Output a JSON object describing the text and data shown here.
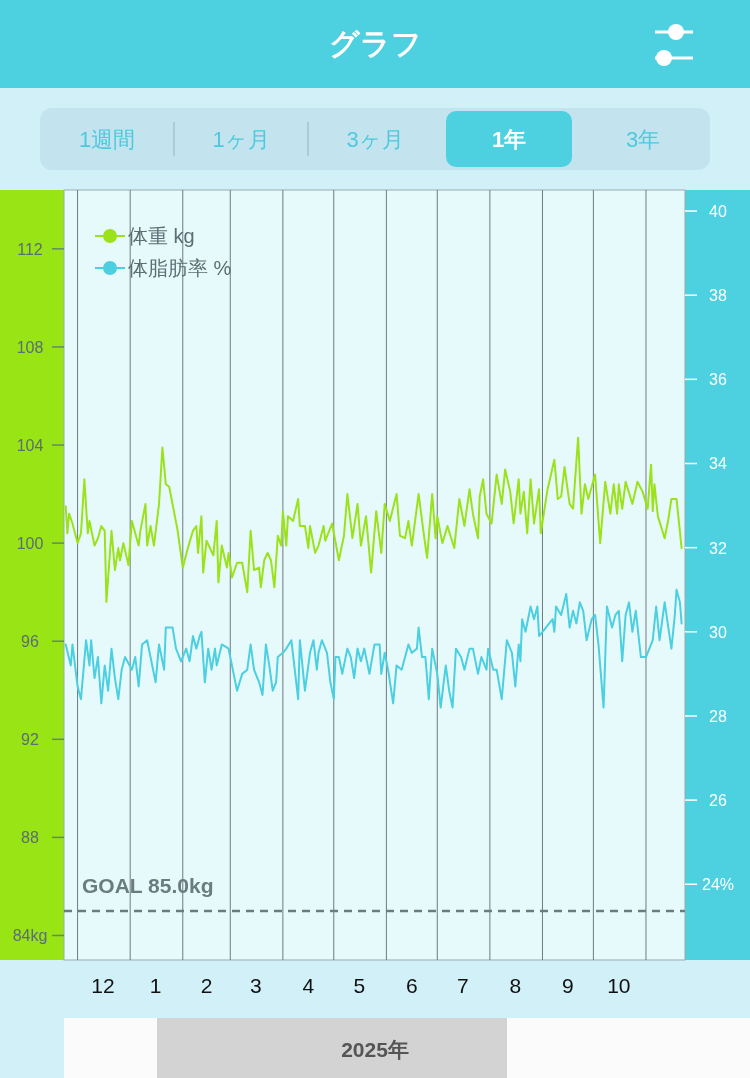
{
  "chart_data": {
    "type": "line",
    "title": "グラフ",
    "xlabel": "2025年",
    "annotations": [
      "1週間",
      "1ヶ月",
      "3ヶ月",
      "1年",
      "3年"
    ],
    "xlim": [
      "2024-11-23",
      "2025-11-24"
    ],
    "xticks": [
      {
        "value": "2024-12-01",
        "label": null
      },
      {
        "value": "2024-12-16",
        "label": "12"
      },
      {
        "value": "2025-01-01",
        "label": null
      },
      {
        "value": "2025-01-16",
        "label": "1"
      },
      {
        "value": "2025-02-01",
        "label": null
      },
      {
        "value": "2025-02-15",
        "label": "2"
      },
      {
        "value": "2025-03-01",
        "label": null
      },
      {
        "value": "2025-03-16",
        "label": "3"
      },
      {
        "value": "2025-04-01",
        "label": null
      },
      {
        "value": "2025-04-16",
        "label": "4"
      },
      {
        "value": "2025-05-01",
        "label": null
      },
      {
        "value": "2025-05-16",
        "label": "5"
      },
      {
        "value": "2025-06-01",
        "label": null
      },
      {
        "value": "2025-06-16",
        "label": "6"
      },
      {
        "value": "2025-07-01",
        "label": null
      },
      {
        "value": "2025-07-16",
        "label": "7"
      },
      {
        "value": "2025-08-01",
        "label": null
      },
      {
        "value": "2025-08-16",
        "label": "8"
      },
      {
        "value": "2025-09-01",
        "label": null
      },
      {
        "value": "2025-09-16",
        "label": "9"
      },
      {
        "value": "2025-10-01",
        "label": null
      },
      {
        "value": "2025-10-16",
        "label": "10"
      },
      {
        "value": "2025-11-01",
        "label": null
      }
    ],
    "ylim": [
      83,
      114.4
    ],
    "yticks": [
      {
        "value": 84,
        "label": "84kg"
      },
      88,
      92,
      96,
      100,
      104,
      108,
      112
    ],
    "y2lim": [
      22.2,
      40.5
    ],
    "y2ticks": [
      {
        "value": 24,
        "label": "24%"
      },
      26,
      28,
      30,
      32,
      34,
      36,
      38,
      40
    ],
    "grid": "x",
    "legend": "top left",
    "ref_lines": [
      {
        "axis": "y",
        "value": 85,
        "label": "GOAL 85.0kg",
        "color": "#6b7b80",
        "line_style": "dashed"
      }
    ],
    "series": [
      {
        "name": "体重 kg",
        "color": "#9be21a",
        "x": [
          "2024-11-24",
          "2024-11-25",
          "2024-11-26",
          "2024-11-28",
          "2024-12-01",
          "2024-12-03",
          "2024-12-05",
          "2024-12-07",
          "2024-12-08",
          "2024-12-11",
          "2024-12-13",
          "2024-12-15",
          "2024-12-17",
          "2024-12-18",
          "2024-12-21",
          "2024-12-23",
          "2024-12-25",
          "2024-12-26",
          "2024-12-28",
          "2024-12-31",
          "2025-01-02",
          "2025-01-06",
          "2025-01-07",
          "2025-01-10",
          "2025-01-11",
          "2025-01-13",
          "2025-01-15",
          "2025-01-18",
          "2025-01-20",
          "2025-01-22",
          "2025-01-24",
          "2025-01-29",
          "2025-02-01",
          "2025-02-04",
          "2025-02-07",
          "2025-02-09",
          "2025-02-10",
          "2025-02-12",
          "2025-02-13",
          "2025-02-15",
          "2025-02-17",
          "2025-02-19",
          "2025-02-21",
          "2025-02-22",
          "2025-02-24",
          "2025-02-27",
          "2025-02-28",
          "2025-03-02",
          "2025-03-05",
          "2025-03-08",
          "2025-03-11",
          "2025-03-13",
          "2025-03-15",
          "2025-03-18",
          "2025-03-19",
          "2025-03-21",
          "2025-03-23",
          "2025-03-25",
          "2025-03-27",
          "2025-03-29",
          "2025-03-31",
          "2025-04-01",
          "2025-04-03",
          "2025-04-04",
          "2025-04-07",
          "2025-04-10",
          "2025-04-11",
          "2025-04-14",
          "2025-04-16",
          "2025-04-17",
          "2025-04-20",
          "2025-04-22",
          "2025-04-25",
          "2025-04-26",
          "2025-04-30",
          "2025-05-04",
          "2025-05-07",
          "2025-05-09",
          "2025-05-12",
          "2025-05-15",
          "2025-05-17",
          "2025-05-20",
          "2025-05-23",
          "2025-05-26",
          "2025-05-29",
          "2025-05-31",
          "2025-06-03",
          "2025-06-07",
          "2025-06-09",
          "2025-06-12",
          "2025-06-14",
          "2025-06-16",
          "2025-06-20",
          "2025-06-23",
          "2025-06-25",
          "2025-06-28",
          "2025-06-30",
          "2025-07-01",
          "2025-07-04",
          "2025-07-07",
          "2025-07-11",
          "2025-07-14",
          "2025-07-17",
          "2025-07-20",
          "2025-07-22",
          "2025-07-25",
          "2025-07-26",
          "2025-07-28",
          "2025-07-30",
          "2025-08-02",
          "2025-08-05",
          "2025-08-08",
          "2025-08-10",
          "2025-08-13",
          "2025-08-15",
          "2025-08-18",
          "2025-08-19",
          "2025-08-21",
          "2025-08-23",
          "2025-08-25",
          "2025-08-27",
          "2025-08-30",
          "2025-08-31",
          "2025-09-04",
          "2025-09-08",
          "2025-09-10",
          "2025-09-12",
          "2025-09-14",
          "2025-09-17",
          "2025-09-19",
          "2025-09-22",
          "2025-09-24",
          "2025-09-26",
          "2025-09-28",
          "2025-10-02",
          "2025-10-05",
          "2025-10-08",
          "2025-10-11",
          "2025-10-13",
          "2025-10-15",
          "2025-10-16",
          "2025-10-18",
          "2025-10-20",
          "2025-10-24",
          "2025-10-27",
          "2025-10-30",
          "2025-11-02",
          "2025-11-04",
          "2025-11-05",
          "2025-11-06",
          "2025-11-08",
          "2025-11-12",
          "2025-11-14",
          "2025-11-16",
          "2025-11-19",
          "2025-11-22"
        ],
        "values": [
          101.5,
          100.4,
          101.2,
          100.8,
          100,
          100.4,
          102.6,
          100.4,
          100.9,
          99.9,
          100.2,
          100.7,
          100.5,
          97.6,
          100.5,
          98.9,
          99.8,
          99.3,
          100,
          99.1,
          100.9,
          99.9,
          100.5,
          101.6,
          99.9,
          100.7,
          99.9,
          101.6,
          103.9,
          102.4,
          102.3,
          100.5,
          99,
          99.8,
          100.5,
          100.7,
          99.6,
          101.1,
          98.8,
          100.1,
          99.8,
          99.5,
          100.9,
          98.4,
          99.9,
          99,
          99.6,
          98.6,
          99.2,
          99.2,
          98,
          100.5,
          98.9,
          99,
          98.2,
          99.3,
          99.6,
          99.3,
          98.2,
          100.3,
          99.9,
          101.3,
          99.9,
          101.1,
          100.9,
          101.8,
          100.7,
          100.7,
          99.8,
          100.7,
          99.6,
          99.9,
          100.7,
          100.1,
          100.8,
          99.3,
          100.3,
          102,
          100.2,
          101.6,
          99.9,
          101.1,
          98.8,
          101.3,
          99.6,
          101.6,
          100.9,
          102,
          100.3,
          100.2,
          100.9,
          99.9,
          102,
          100.4,
          99.4,
          102,
          100.2,
          101.1,
          100,
          100.7,
          99.8,
          101.8,
          100.7,
          102.2,
          101.2,
          100.2,
          101.9,
          102.6,
          101.2,
          100.8,
          102.8,
          101.6,
          103,
          102.1,
          100.8,
          102.6,
          101.2,
          102.1,
          100.4,
          102.6,
          100.8,
          102.2,
          100.4,
          102.2,
          103.4,
          101.8,
          101.9,
          103.1,
          101.6,
          101.4,
          104.3,
          101.2,
          102.4,
          101.8,
          102.8,
          100,
          102.5,
          101.2,
          102.4,
          101.2,
          102.4,
          101.4,
          102.5,
          101.6,
          102.5,
          102.1,
          101.4,
          103.2,
          101.3,
          102.4,
          101.1,
          100.2,
          100.9,
          101.8,
          101.8,
          99.8
        ]
      },
      {
        "name": "体脂肪率 %",
        "color": "#4ccfe0",
        "axis": "y2",
        "x": [
          "2024-11-24",
          "2024-11-27",
          "2024-11-28",
          "2024-12-01",
          "2024-12-03",
          "2024-12-06",
          "2024-12-08",
          "2024-12-09",
          "2024-12-11",
          "2024-12-13",
          "2024-12-15",
          "2024-12-17",
          "2024-12-19",
          "2024-12-21",
          "2024-12-23",
          "2024-12-25",
          "2024-12-27",
          "2024-12-29",
          "2025-01-02",
          "2025-01-04",
          "2025-01-06",
          "2025-01-08",
          "2025-01-11",
          "2025-01-14",
          "2025-01-16",
          "2025-01-18",
          "2025-01-21",
          "2025-01-22",
          "2025-01-24",
          "2025-01-26",
          "2025-01-28",
          "2025-01-31",
          "2025-02-03",
          "2025-02-05",
          "2025-02-07",
          "2025-02-09",
          "2025-02-11",
          "2025-02-12",
          "2025-02-14",
          "2025-02-16",
          "2025-02-18",
          "2025-02-20",
          "2025-02-21",
          "2025-02-24",
          "2025-02-28",
          "2025-03-03",
          "2025-03-05",
          "2025-03-08",
          "2025-03-11",
          "2025-03-13",
          "2025-03-15",
          "2025-03-18",
          "2025-03-20",
          "2025-03-22",
          "2025-03-24",
          "2025-03-26",
          "2025-03-28",
          "2025-03-29",
          "2025-04-01",
          "2025-04-03",
          "2025-04-06",
          "2025-04-10",
          "2025-04-11",
          "2025-04-14",
          "2025-04-17",
          "2025-04-19",
          "2025-04-21",
          "2025-04-22",
          "2025-04-24",
          "2025-04-27",
          "2025-04-29",
          "2025-05-01",
          "2025-05-02",
          "2025-05-04",
          "2025-05-06",
          "2025-05-09",
          "2025-05-11",
          "2025-05-13",
          "2025-05-15",
          "2025-05-17",
          "2025-05-19",
          "2025-05-22",
          "2025-05-25",
          "2025-05-28",
          "2025-05-29",
          "2025-05-31",
          "2025-06-02",
          "2025-06-05",
          "2025-06-07",
          "2025-06-10",
          "2025-06-14",
          "2025-06-16",
          "2025-06-19",
          "2025-06-20",
          "2025-06-22",
          "2025-06-24",
          "2025-06-26",
          "2025-06-28",
          "2025-07-01",
          "2025-07-03",
          "2025-07-06",
          "2025-07-08",
          "2025-07-10",
          "2025-07-12",
          "2025-07-15",
          "2025-07-17",
          "2025-07-20",
          "2025-07-22",
          "2025-07-25",
          "2025-07-27",
          "2025-07-30",
          "2025-07-31",
          "2025-08-03",
          "2025-08-05",
          "2025-08-08",
          "2025-08-11",
          "2025-08-14",
          "2025-08-16",
          "2025-08-18",
          "2025-08-19",
          "2025-08-20",
          "2025-08-22",
          "2025-08-25",
          "2025-08-27",
          "2025-08-29",
          "2025-08-30",
          "2025-09-03",
          "2025-09-07",
          "2025-09-08",
          "2025-09-09",
          "2025-09-12",
          "2025-09-15",
          "2025-09-17",
          "2025-09-19",
          "2025-09-21",
          "2025-09-23",
          "2025-09-25",
          "2025-09-27",
          "2025-09-30",
          "2025-10-02",
          "2025-10-04",
          "2025-10-07",
          "2025-10-09",
          "2025-10-12",
          "2025-10-14",
          "2025-10-16",
          "2025-10-18",
          "2025-10-20",
          "2025-10-22",
          "2025-10-24",
          "2025-10-26",
          "2025-10-29",
          "2025-11-01",
          "2025-11-03",
          "2025-11-05",
          "2025-11-07",
          "2025-11-09",
          "2025-11-12",
          "2025-11-16",
          "2025-11-18",
          "2025-11-19",
          "2025-11-21",
          "2025-11-22"
        ],
        "values": [
          29.7,
          29.2,
          29.7,
          28.7,
          28.4,
          29.8,
          29.2,
          29.8,
          28.9,
          29.4,
          28.3,
          29.2,
          28.6,
          29.6,
          28.9,
          28.4,
          29.1,
          29.4,
          29.1,
          29.4,
          28.7,
          29.7,
          29.8,
          29.2,
          28.8,
          29.7,
          29.1,
          30.1,
          30.1,
          30.1,
          29.6,
          29.3,
          29.6,
          29.3,
          29.9,
          29.6,
          29.9,
          30,
          28.8,
          29.6,
          29.1,
          29.6,
          29.2,
          29.7,
          29.6,
          29,
          28.6,
          29,
          29.1,
          29.7,
          29.1,
          28.8,
          28.5,
          29.7,
          29.2,
          28.6,
          28.8,
          29.4,
          29.5,
          29.6,
          29.8,
          28.4,
          29.8,
          28.6,
          29.5,
          29.8,
          29.1,
          29.5,
          29.8,
          29.5,
          28.8,
          28.4,
          29.4,
          29.4,
          29,
          29.6,
          29.4,
          28.9,
          29.6,
          29.3,
          29.6,
          29,
          29.7,
          29.7,
          29,
          29.5,
          29.1,
          28.3,
          29.2,
          29.1,
          29.7,
          29.5,
          29.6,
          30.1,
          29.4,
          29.4,
          28.4,
          29.6,
          29,
          28.2,
          29.2,
          28.6,
          28.2,
          29.6,
          29.4,
          29.1,
          29.6,
          29.6,
          29,
          29.4,
          29.1,
          29.6,
          29.1,
          29.1,
          28.4,
          29.8,
          29.5,
          28.7,
          29.7,
          29.3,
          30.3,
          30,
          30.6,
          30.3,
          30.6,
          29.9,
          30.1,
          30.3,
          30,
          30.6,
          30.4,
          30.9,
          30.1,
          30.5,
          30.2,
          30.7,
          30.5,
          29.8,
          30.3,
          30.4,
          29.7,
          28.2,
          30.6,
          30.1,
          30.4,
          30.5,
          29.3,
          30.4,
          30.7,
          30,
          30.5,
          29.4,
          29.4,
          29.6,
          29.8,
          30.6,
          29.8,
          30.7,
          29.6,
          30.4,
          31,
          30.7,
          30.2
        ]
      }
    ]
  }
}
